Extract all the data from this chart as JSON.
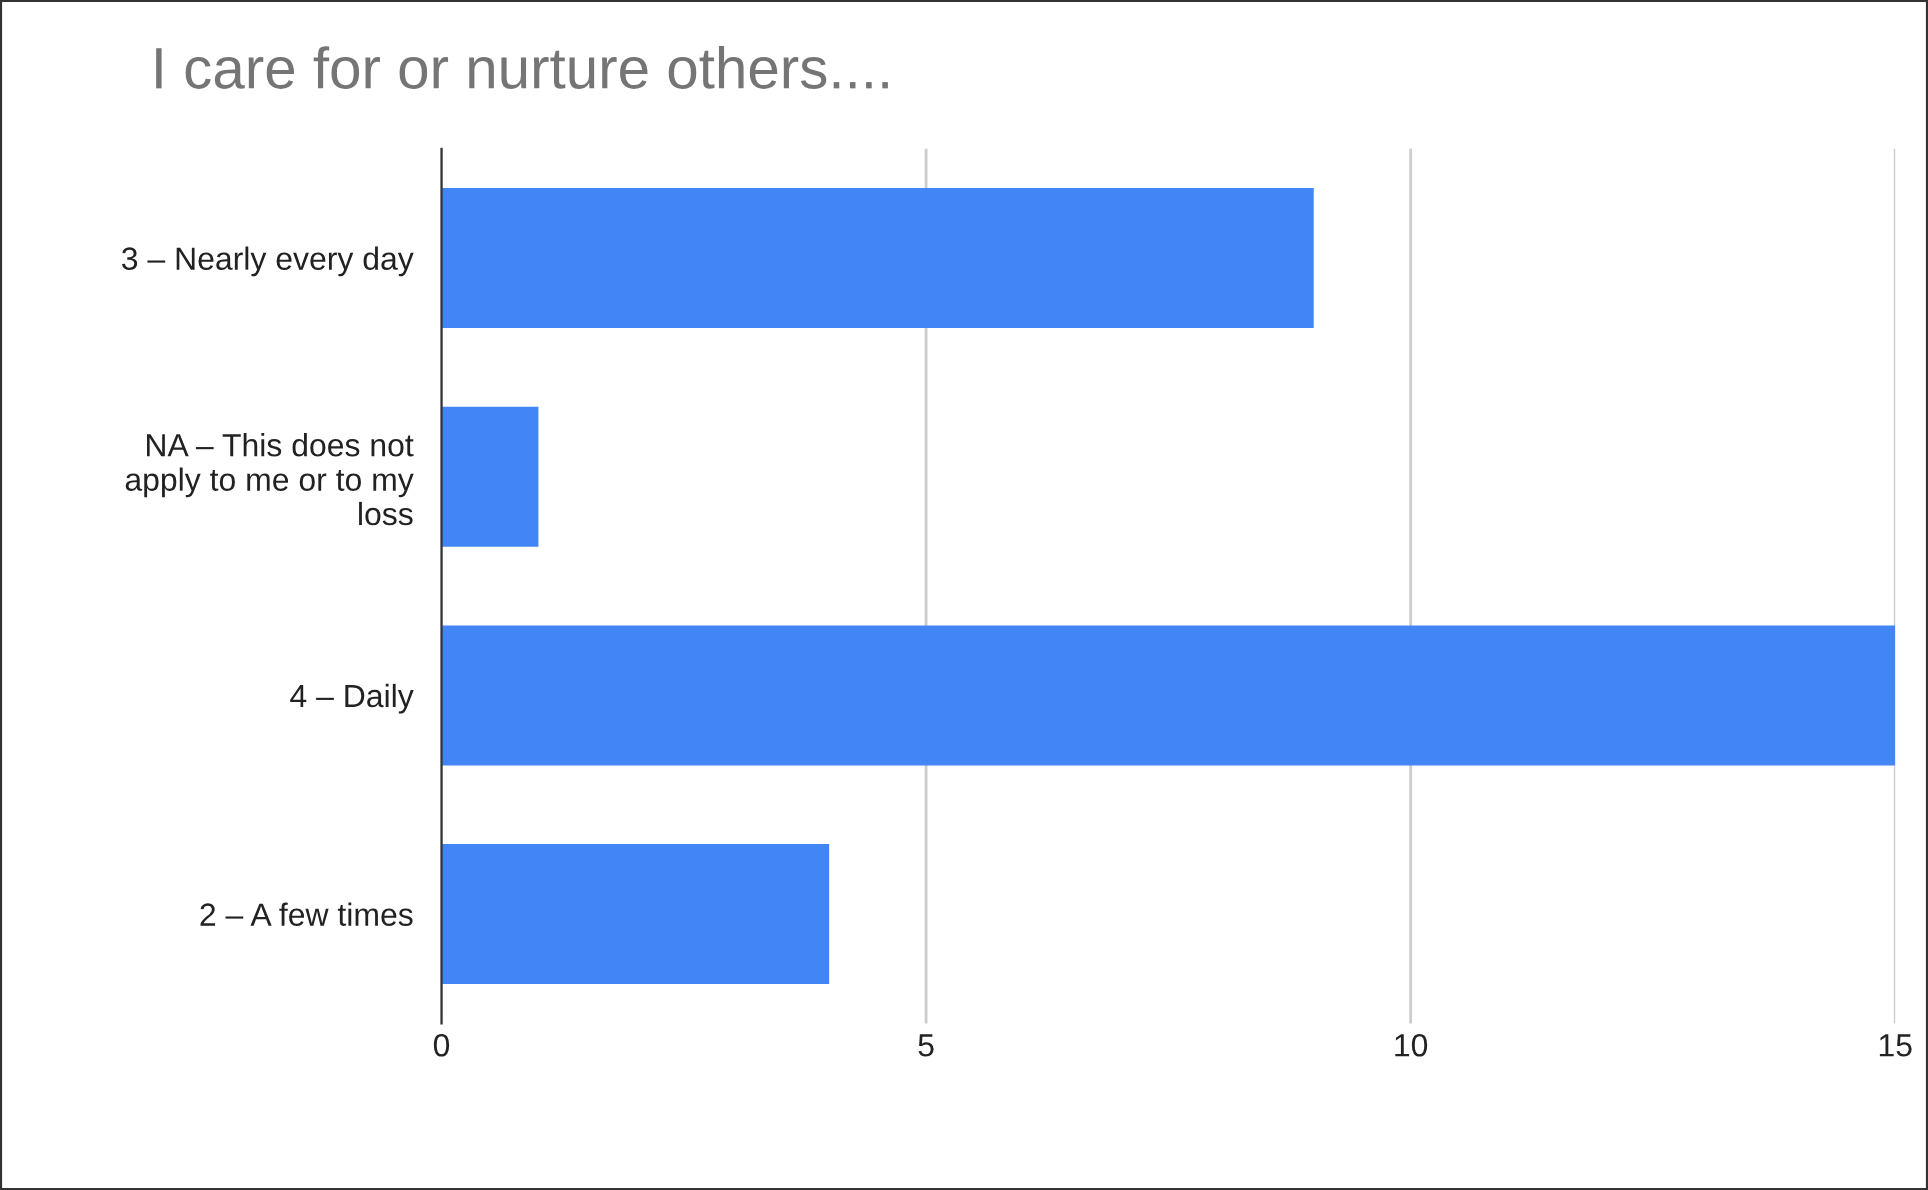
{
  "chart_data": {
    "type": "bar",
    "orientation": "horizontal",
    "title": "I care for or nurture others....",
    "categories": [
      "3 – Nearly every day",
      "NA – This does not\napply to me or to my\nloss",
      "4 – Daily",
      "2 – A few times"
    ],
    "values": [
      9,
      1,
      15,
      4
    ],
    "color": "#4285f4",
    "xlim": [
      0,
      15
    ],
    "xticks": [
      0,
      5,
      10,
      15
    ],
    "grid": "x"
  }
}
